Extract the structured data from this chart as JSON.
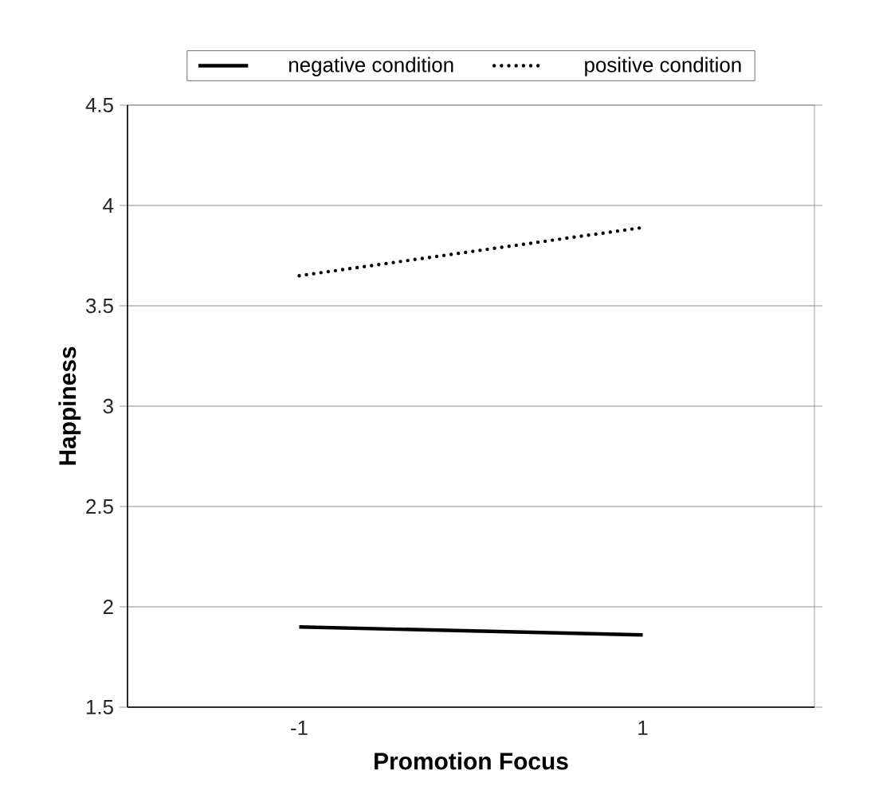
{
  "chart_data": {
    "type": "line",
    "xlabel": "Promotion Focus",
    "ylabel": "Happiness",
    "categories": [
      "-1",
      "1"
    ],
    "series": [
      {
        "name": "negative condition",
        "color": "#000000",
        "line_style": "solid",
        "values": [
          1.9,
          1.86
        ]
      },
      {
        "name": "positive condition",
        "color": "#000000",
        "line_style": "dotted",
        "values": [
          3.65,
          3.89
        ]
      }
    ],
    "ylim": [
      1.5,
      4.5
    ],
    "yticks": [
      1.5,
      2,
      2.5,
      3,
      3.5,
      4,
      4.5
    ],
    "grid": "y",
    "legend": "top",
    "marker": "none"
  }
}
